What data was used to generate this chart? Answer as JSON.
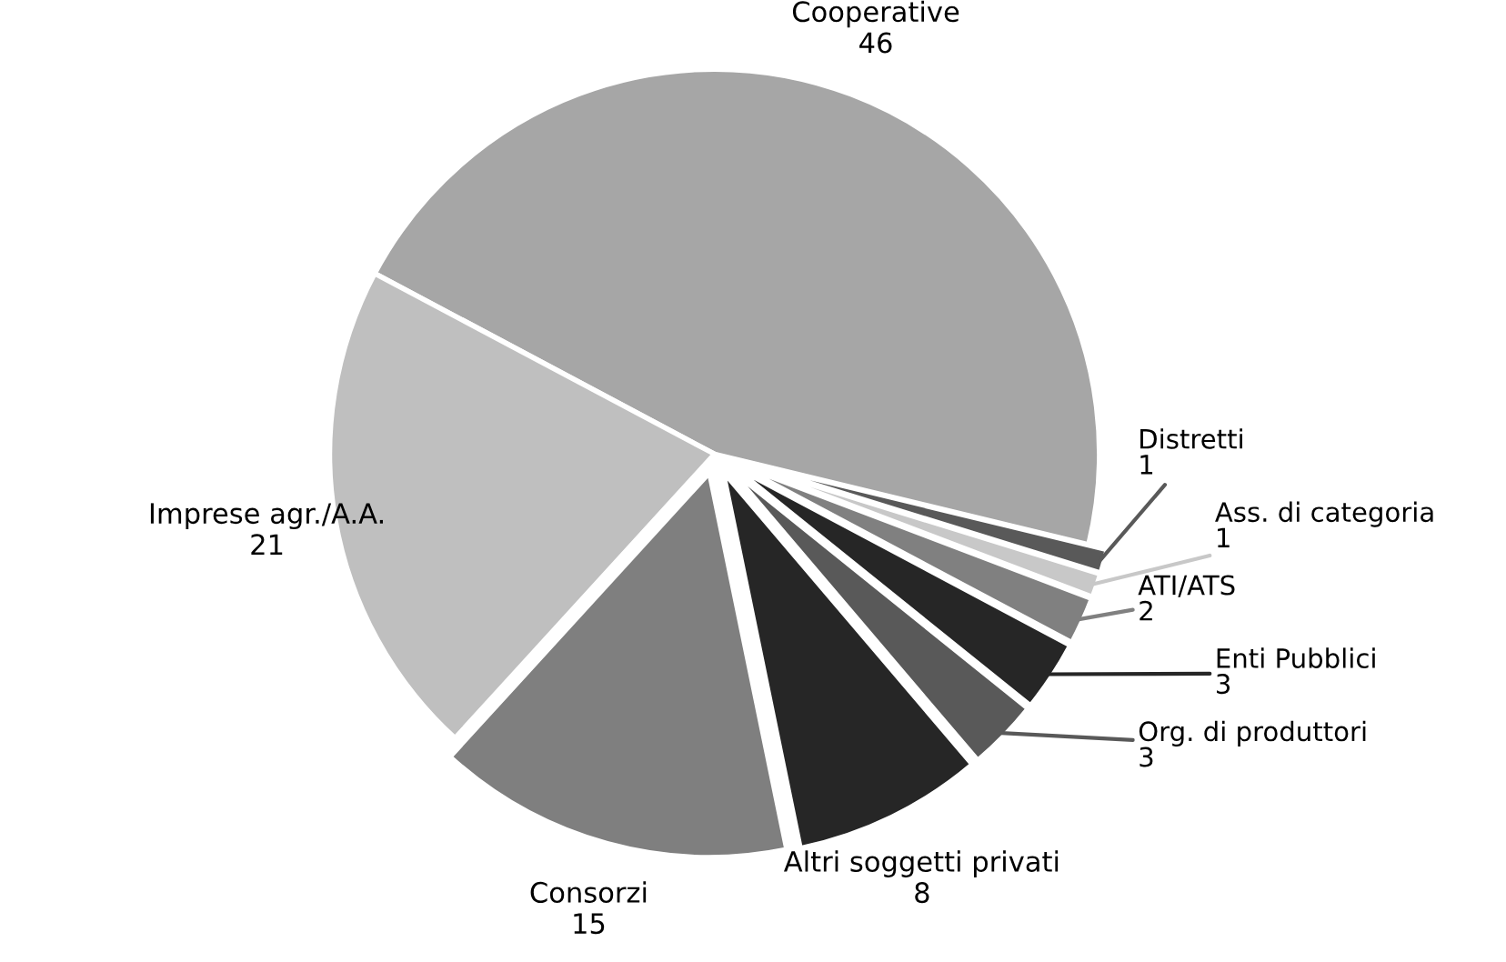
{
  "chart_data": {
    "type": "pie",
    "categories": [
      "Cooperative",
      "Distretti",
      "Ass. di categoria",
      "ATI/ATS",
      "Enti Pubblici",
      "Org. di produttori",
      "Altri soggetti privati",
      "Consorzi",
      "Imprese agr./A.A."
    ],
    "values": [
      46,
      1,
      1,
      2,
      3,
      3,
      8,
      15,
      21
    ],
    "colors": [
      "#a6a6a6",
      "#595959",
      "#c8c8c8",
      "#808080",
      "#262626",
      "#595959",
      "#262626",
      "#7f7f7f",
      "#bfbfbf"
    ],
    "data_labels": true,
    "legend": false
  }
}
